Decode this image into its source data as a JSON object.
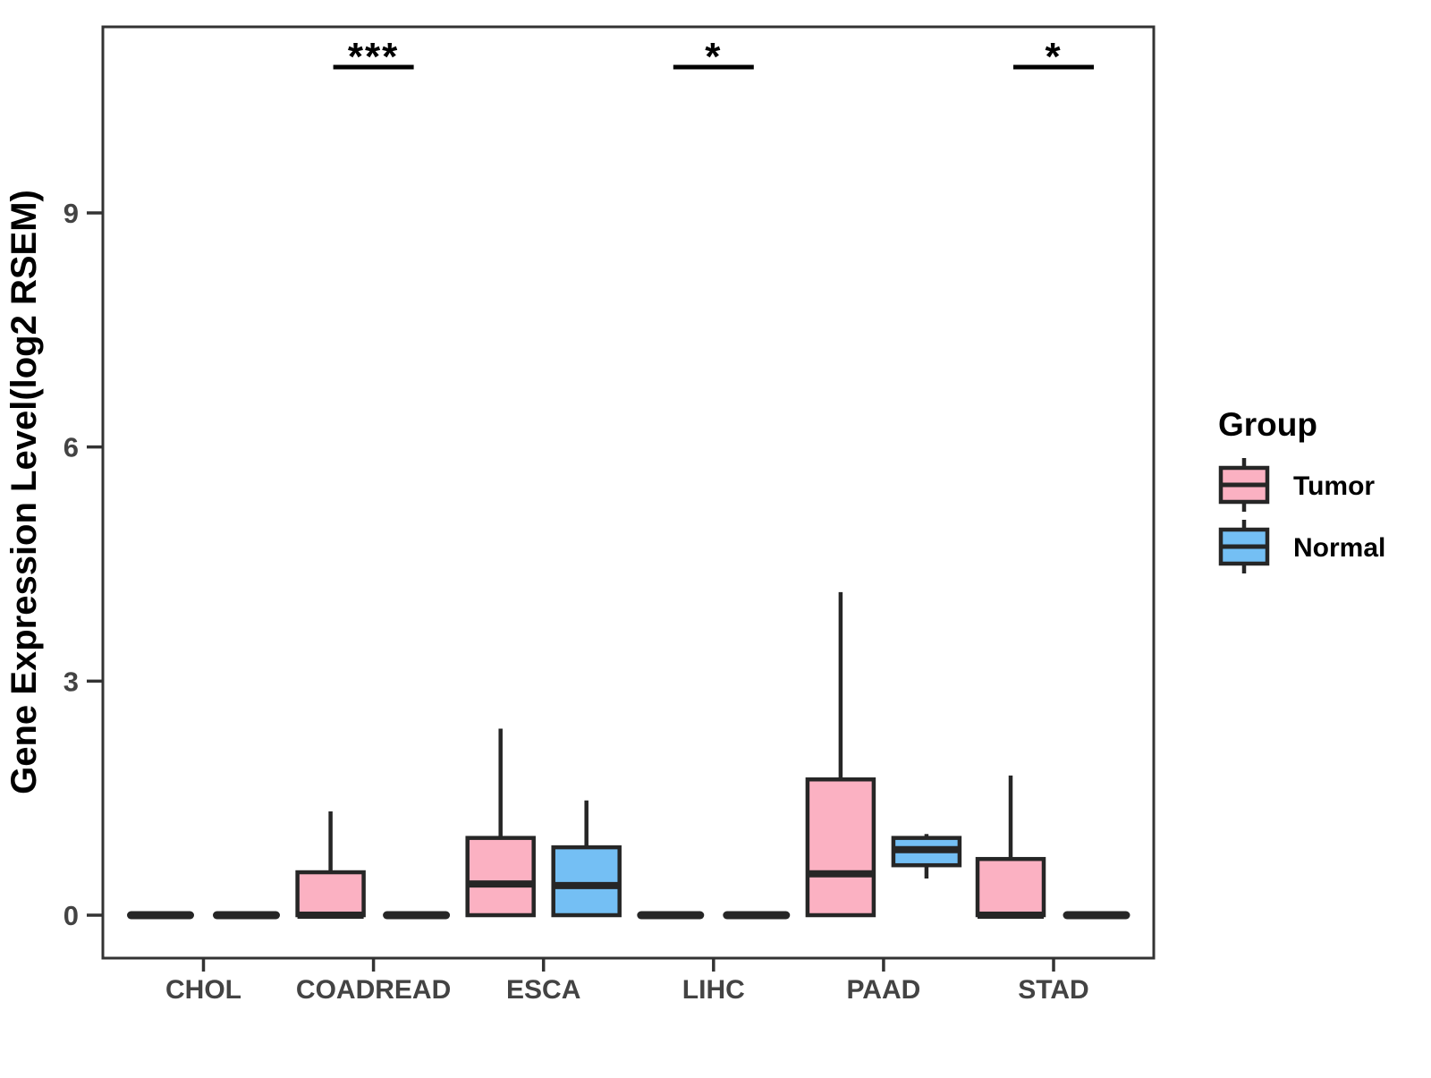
{
  "figure": {
    "background_color": "#ffffff",
    "panel_border_color": "#333333"
  },
  "chart_data": {
    "type": "boxplot",
    "title": "",
    "xlabel": "",
    "ylabel": "Gene Expression Level(log2 RSEM)",
    "categories": [
      "CHOL",
      "COADREAD",
      "ESCA",
      "LIHC",
      "PAAD",
      "STAD"
    ],
    "y_ticks": [
      "0",
      "3",
      "6",
      "9"
    ],
    "y_tick_values": [
      0,
      3,
      6,
      9
    ],
    "ylim": [
      -0.55,
      11.4
    ],
    "grid": false,
    "box_border_color": "#262626",
    "tick_label_color": "#434343",
    "axis_title_color": "#000000",
    "series": [
      {
        "name": "Tumor",
        "color": "#FBB1C2",
        "boxes": [
          {
            "category": "CHOL",
            "min": 0,
            "q1": 0,
            "median": 0,
            "q3": 0,
            "max": 0
          },
          {
            "category": "COADREAD",
            "min": 0,
            "q1": 0,
            "median": 0,
            "q3": 0.55,
            "max": 1.33
          },
          {
            "category": "ESCA",
            "min": 0,
            "q1": 0,
            "median": 0.4,
            "q3": 0.99,
            "max": 2.39
          },
          {
            "category": "LIHC",
            "min": 0,
            "q1": 0,
            "median": 0,
            "q3": 0,
            "max": 0
          },
          {
            "category": "PAAD",
            "min": 0,
            "q1": 0,
            "median": 0.53,
            "q3": 1.74,
            "max": 4.14
          },
          {
            "category": "STAD",
            "min": 0,
            "q1": 0,
            "median": 0,
            "q3": 0.72,
            "max": 1.79
          }
        ]
      },
      {
        "name": "Normal",
        "color": "#74BFF4",
        "boxes": [
          {
            "category": "CHOL",
            "min": 0,
            "q1": 0,
            "median": 0,
            "q3": 0,
            "max": 0
          },
          {
            "category": "COADREAD",
            "min": 0,
            "q1": 0,
            "median": 0,
            "q3": 0,
            "max": 0
          },
          {
            "category": "ESCA",
            "min": 0,
            "q1": 0,
            "median": 0.38,
            "q3": 0.87,
            "max": 1.47
          },
          {
            "category": "LIHC",
            "min": 0,
            "q1": 0,
            "median": 0,
            "q3": 0,
            "max": 0
          },
          {
            "category": "PAAD",
            "min": 0.47,
            "q1": 0.64,
            "median": 0.84,
            "q3": 0.99,
            "max": 1.04
          },
          {
            "category": "STAD",
            "min": 0,
            "q1": 0,
            "median": 0,
            "q3": 0,
            "max": 0
          }
        ]
      }
    ],
    "significance": [
      {
        "category": "COADREAD",
        "label": "***"
      },
      {
        "category": "LIHC",
        "label": "*"
      },
      {
        "category": "STAD",
        "label": "*"
      }
    ],
    "legend": {
      "title": "Group",
      "position": "right",
      "entries": [
        {
          "label": "Tumor",
          "color": "#FBB1C2"
        },
        {
          "label": "Normal",
          "color": "#74BFF4"
        }
      ]
    }
  }
}
